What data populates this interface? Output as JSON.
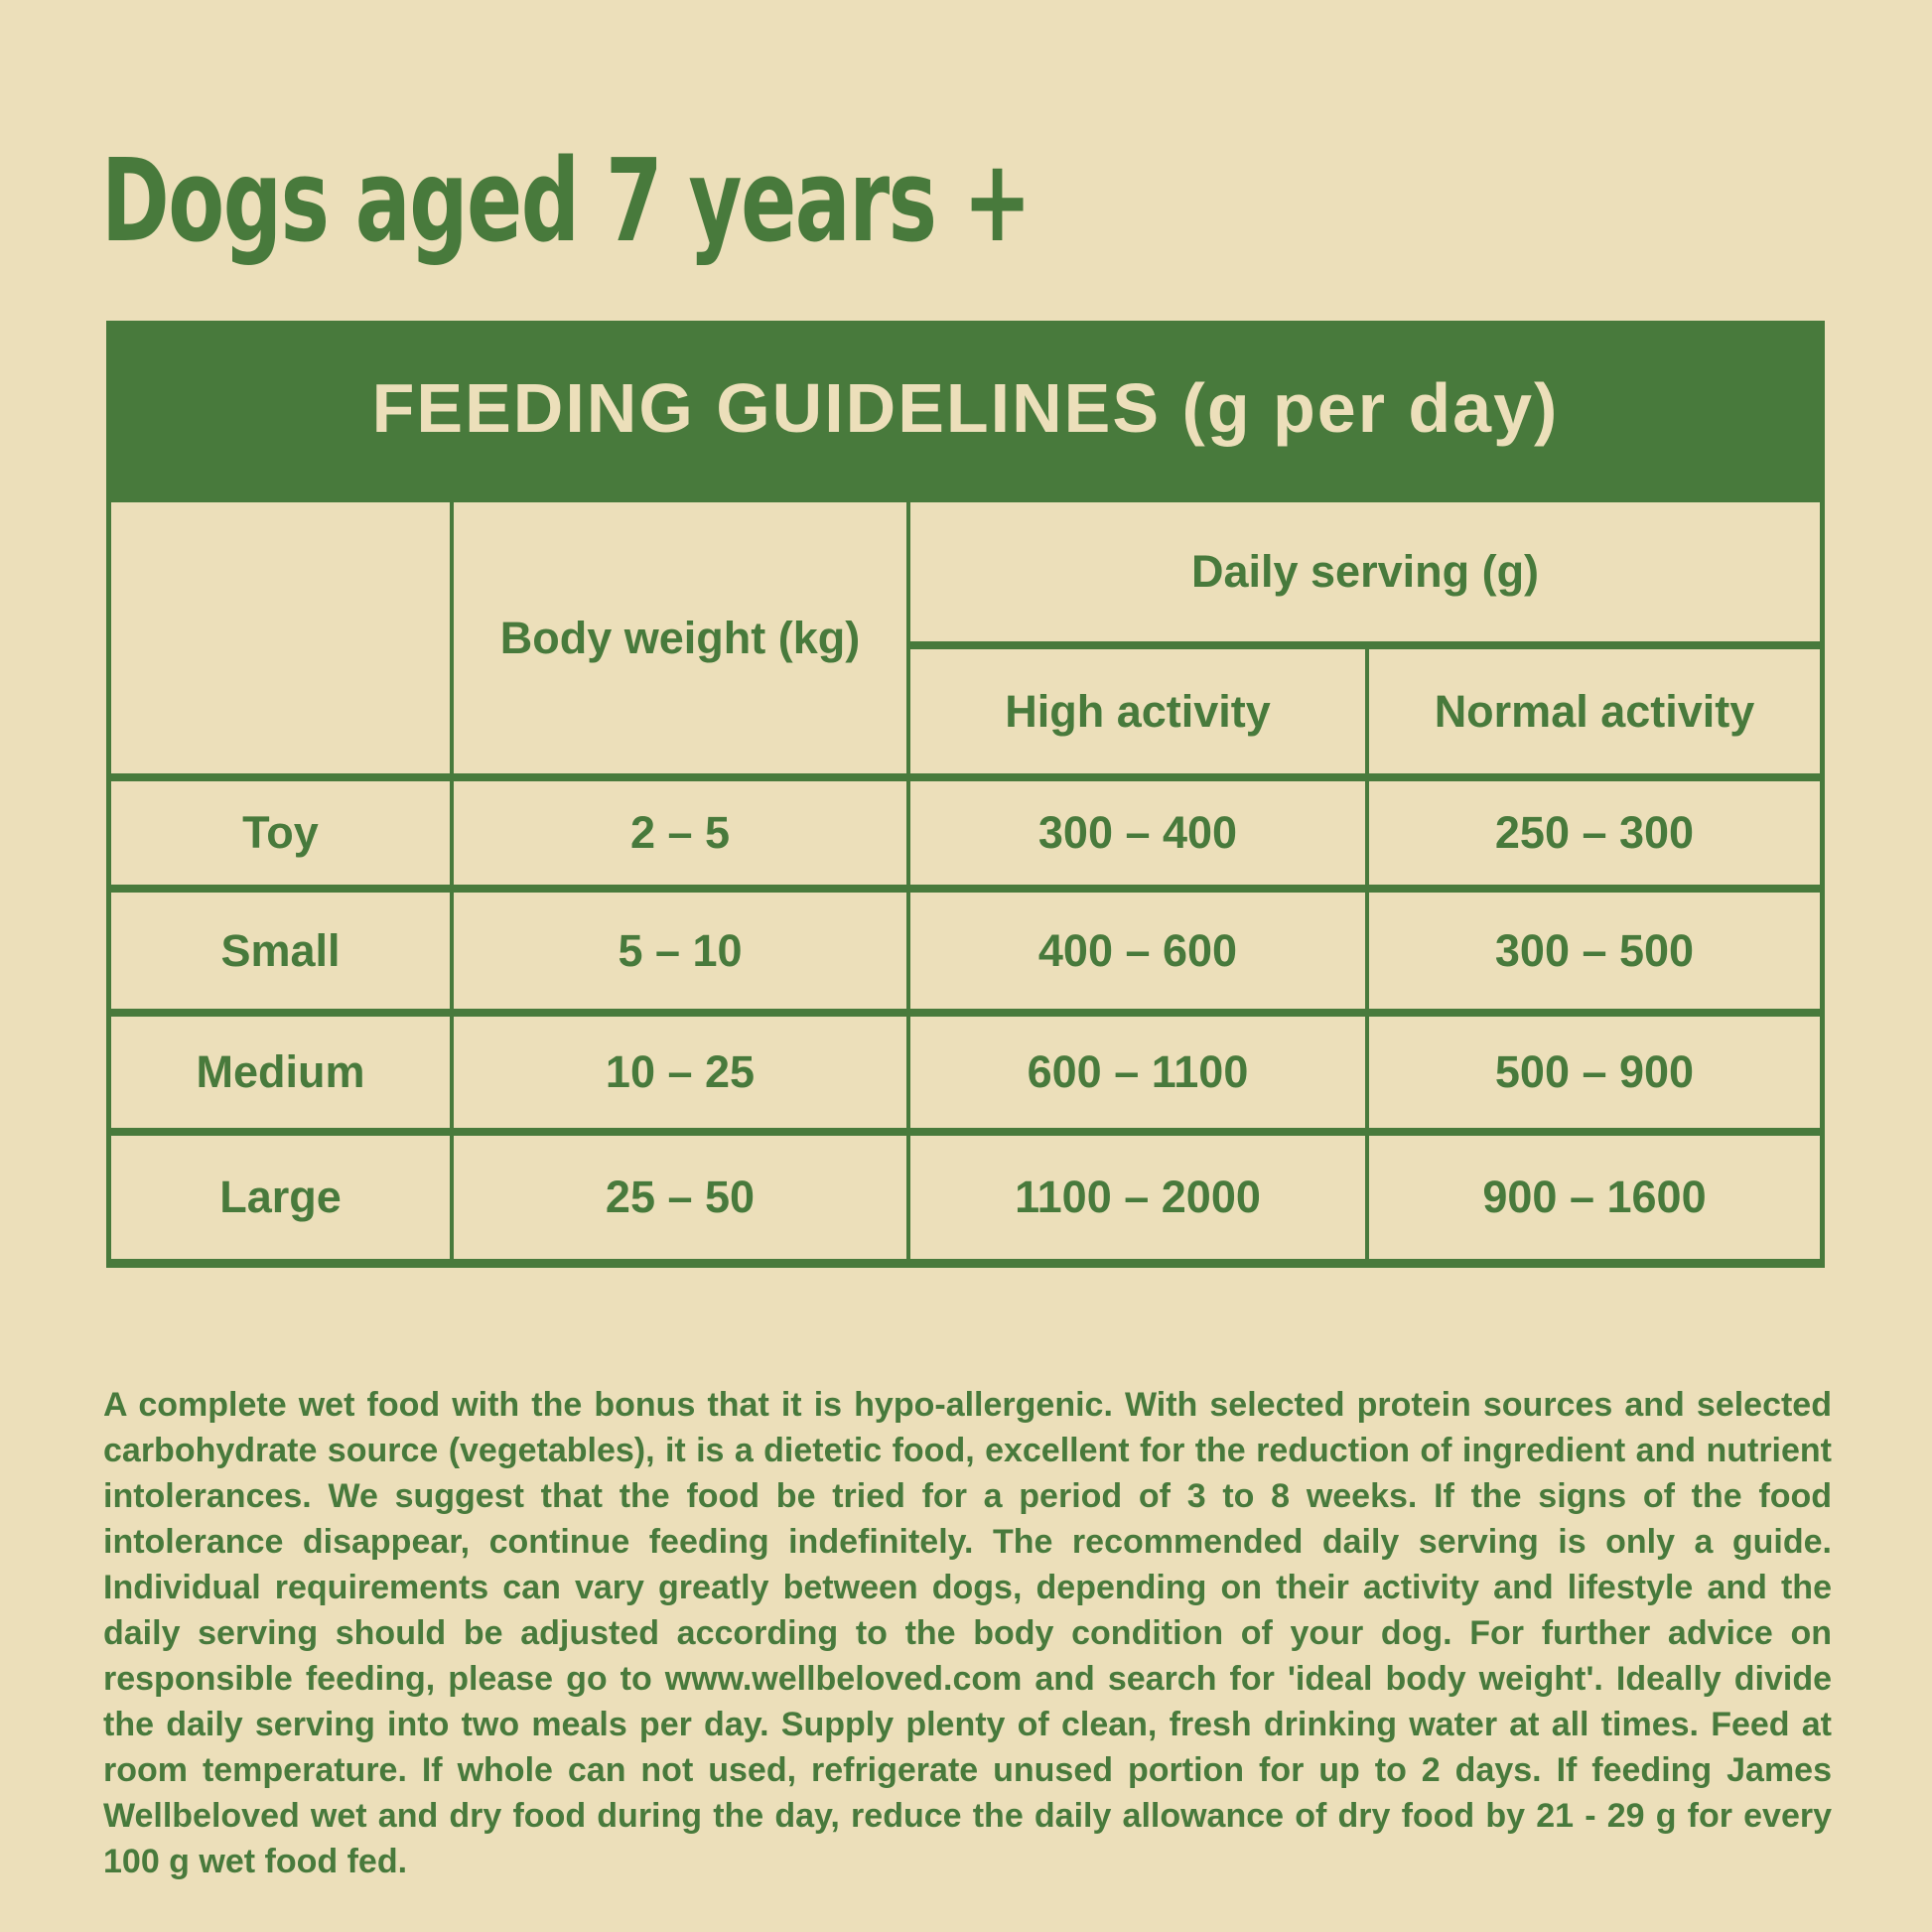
{
  "page": {
    "title": "Dogs aged 7 years +",
    "background_color": "#ECDFBA",
    "accent_green": "#487A3C"
  },
  "table": {
    "banner": "FEEDING GUIDELINES (g per day)",
    "columns": {
      "body_weight": "Body weight (kg)",
      "daily_serving": "Daily serving (g)",
      "high_activity": "High activity",
      "normal_activity": "Normal activity"
    },
    "rows": [
      {
        "size": "Toy",
        "weight": "2 – 5",
        "high": "300 – 400",
        "normal": "250 – 300"
      },
      {
        "size": "Small",
        "weight": "5 – 10",
        "high": "400 – 600",
        "normal": "300 – 500"
      },
      {
        "size": "Medium",
        "weight": "10 – 25",
        "high": "600 – 1100",
        "normal": "500 – 900"
      },
      {
        "size": "Large",
        "weight": "25 – 50",
        "high": "1100 – 2000",
        "normal": "900 – 1600"
      }
    ]
  },
  "footer_text": "A complete wet food with the bonus that it is hypo-allergenic. With selected protein sources and selected carbohydrate source (vegetables), it is a dietetic food, excellent for the reduction of ingredient and nutrient intolerances. We suggest that the food be tried for a period of 3 to 8 weeks. If the signs of the food intolerance disappear, continue feeding indefinitely. The recommended daily serving is only a guide. Individual requirements can vary greatly between dogs, depending on their activity and lifestyle and the daily serving should be adjusted according to the body condition of your dog. For further advice on responsible feeding, please go to www.wellbeloved.com and search for 'ideal body weight'. Ideally divide the daily serving into two meals per day. Supply plenty of clean, fresh drinking water at all times. Feed at room temperature. If whole can not used, refrigerate unused portion for up to 2 days. If feeding James Wellbeloved wet and dry food during the day, reduce the daily allowance of dry food by 21 - 29 g for every 100 g wet food fed."
}
